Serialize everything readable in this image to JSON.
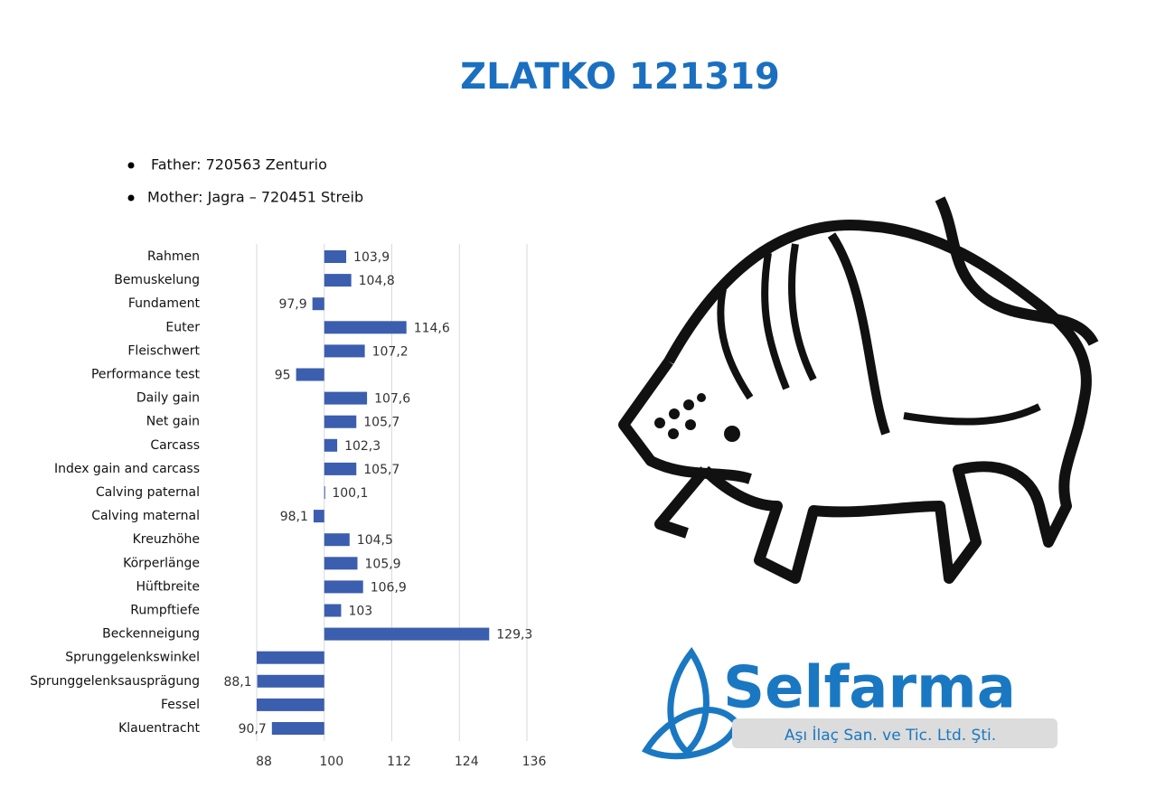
{
  "header": {
    "title": "ZLATKO 121319"
  },
  "parents": [
    "Father: 720563 Zenturio",
    "Mother: Jagra – 720451 Streib"
  ],
  "chart_data": {
    "type": "hbar",
    "categories": [
      "Rahmen",
      "Bemuskelung",
      "Fundament",
      "Euter",
      "Fleischwert",
      "Performance test",
      "Daily gain",
      "Net gain",
      "Carcass",
      "Index gain and carcass",
      "Calving paternal",
      "Calving maternal",
      "Kreuzhöhe",
      "Körperlänge",
      "Hüftbreite",
      "Rumpftiefe",
      "Beckenneigung",
      "Sprunggelenkswinkel",
      "Sprunggelenksausprägung",
      "Fessel",
      "Klauentracht"
    ],
    "values": [
      103.9,
      104.8,
      97.9,
      114.6,
      107.2,
      95,
      107.6,
      105.7,
      102.3,
      105.7,
      100.1,
      98.1,
      104.5,
      105.9,
      106.9,
      103,
      129.3,
      88,
      88.1,
      88,
      90.7
    ],
    "value_labels": [
      "103,9",
      "104,8",
      "97,9",
      "114,6",
      "107,2",
      "95",
      "107,6",
      "105,7",
      "102,3",
      "105,7",
      "100,1",
      "98,1",
      "104,5",
      "105,9",
      "106,9",
      "103",
      "129,3",
      null,
      "88,1",
      null,
      "90,7"
    ],
    "base": 100,
    "color": "#3b5eae",
    "xlim": [
      88,
      136
    ],
    "xticks": [
      88,
      100,
      112,
      124,
      136
    ],
    "grid": true
  },
  "logo": {
    "name": "Selfarma",
    "tagline": "Aşı İlaç San. ve Tic. Ltd. Şti."
  }
}
